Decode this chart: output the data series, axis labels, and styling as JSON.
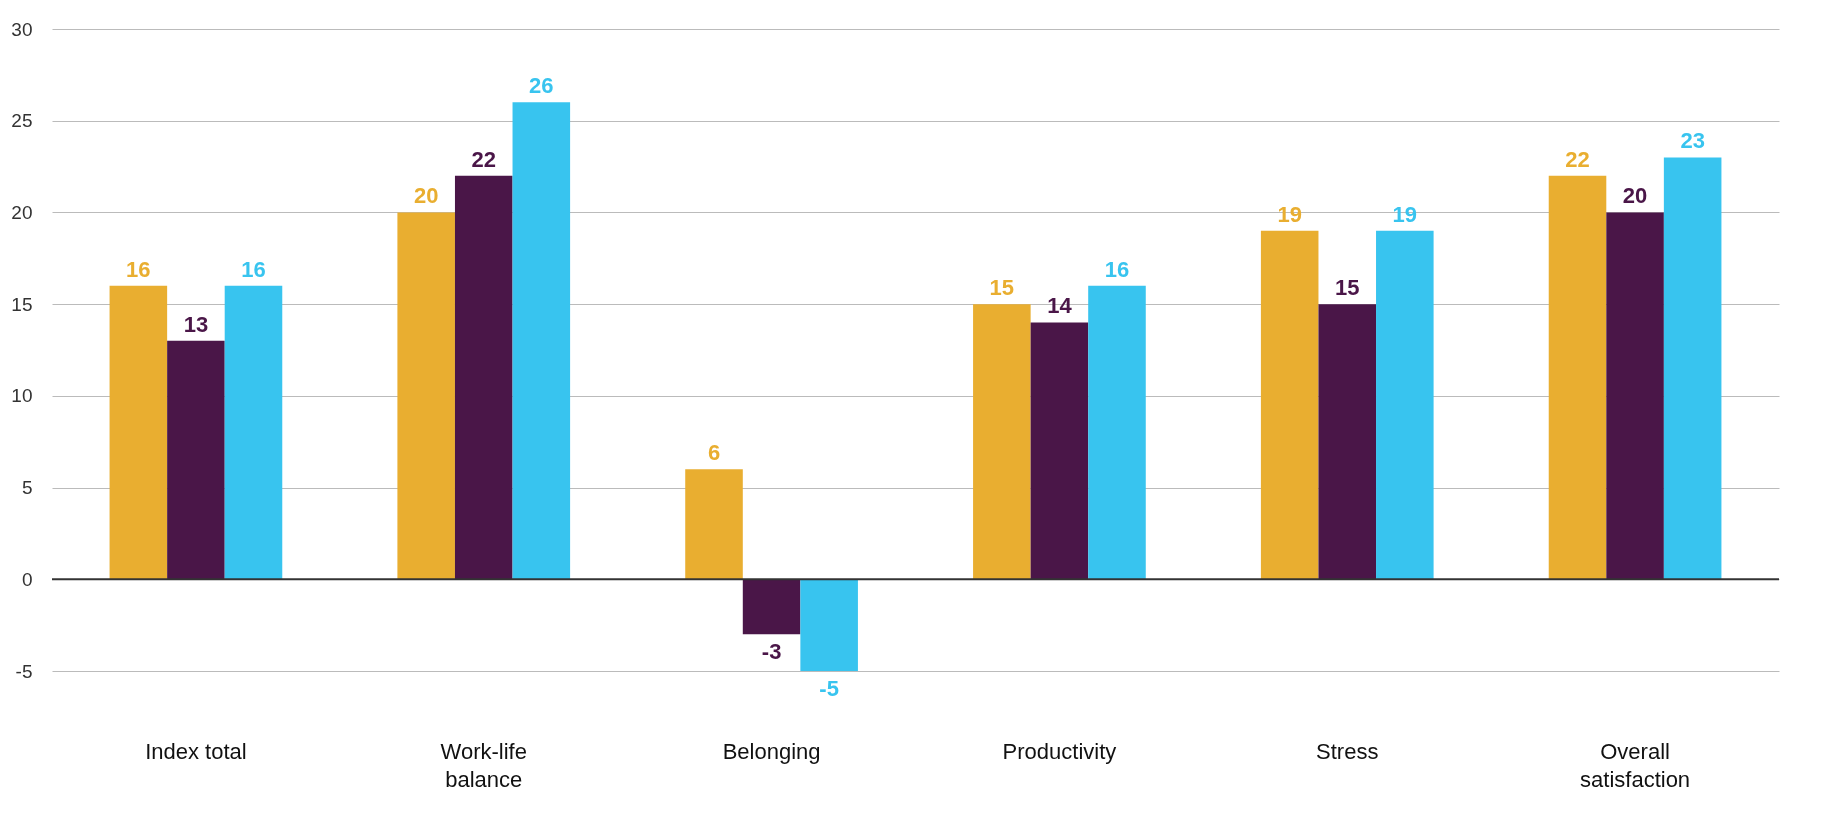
{
  "chart_data": {
    "type": "bar",
    "categories": [
      "Index total",
      "Work-life balance",
      "Belonging",
      "Productivity",
      "Stress",
      "Overall satisfaction"
    ],
    "series": [
      {
        "color": "#e9ae30",
        "values": [
          16,
          20,
          6,
          15,
          19,
          22
        ]
      },
      {
        "color": "#4a1648",
        "values": [
          13,
          22,
          -3,
          14,
          15,
          20
        ]
      },
      {
        "color": "#38c4ef",
        "values": [
          16,
          26,
          -5,
          16,
          19,
          23
        ]
      }
    ],
    "ylim": [
      -5,
      30
    ],
    "yticks": [
      -5,
      0,
      5,
      10,
      15,
      20,
      25,
      30
    ],
    "grid": "y",
    "ref_lines": [
      {
        "axis": "y",
        "value": 0,
        "color": "#333333"
      }
    ],
    "data_labels": true
  }
}
